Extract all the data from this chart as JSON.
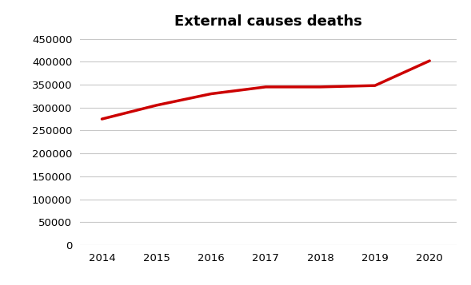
{
  "title": "External causes deaths",
  "years": [
    2014,
    2015,
    2016,
    2017,
    2018,
    2019,
    2020
  ],
  "values": [
    275000,
    305000,
    330000,
    345000,
    345000,
    348000,
    402000
  ],
  "line_color": "#cc0000",
  "line_width": 2.5,
  "ylim": [
    0,
    460000
  ],
  "yticks": [
    0,
    50000,
    100000,
    150000,
    200000,
    250000,
    300000,
    350000,
    400000,
    450000
  ],
  "background_color": "#ffffff",
  "grid_color": "#c8c8c8",
  "title_fontsize": 13,
  "tick_fontsize": 9.5
}
